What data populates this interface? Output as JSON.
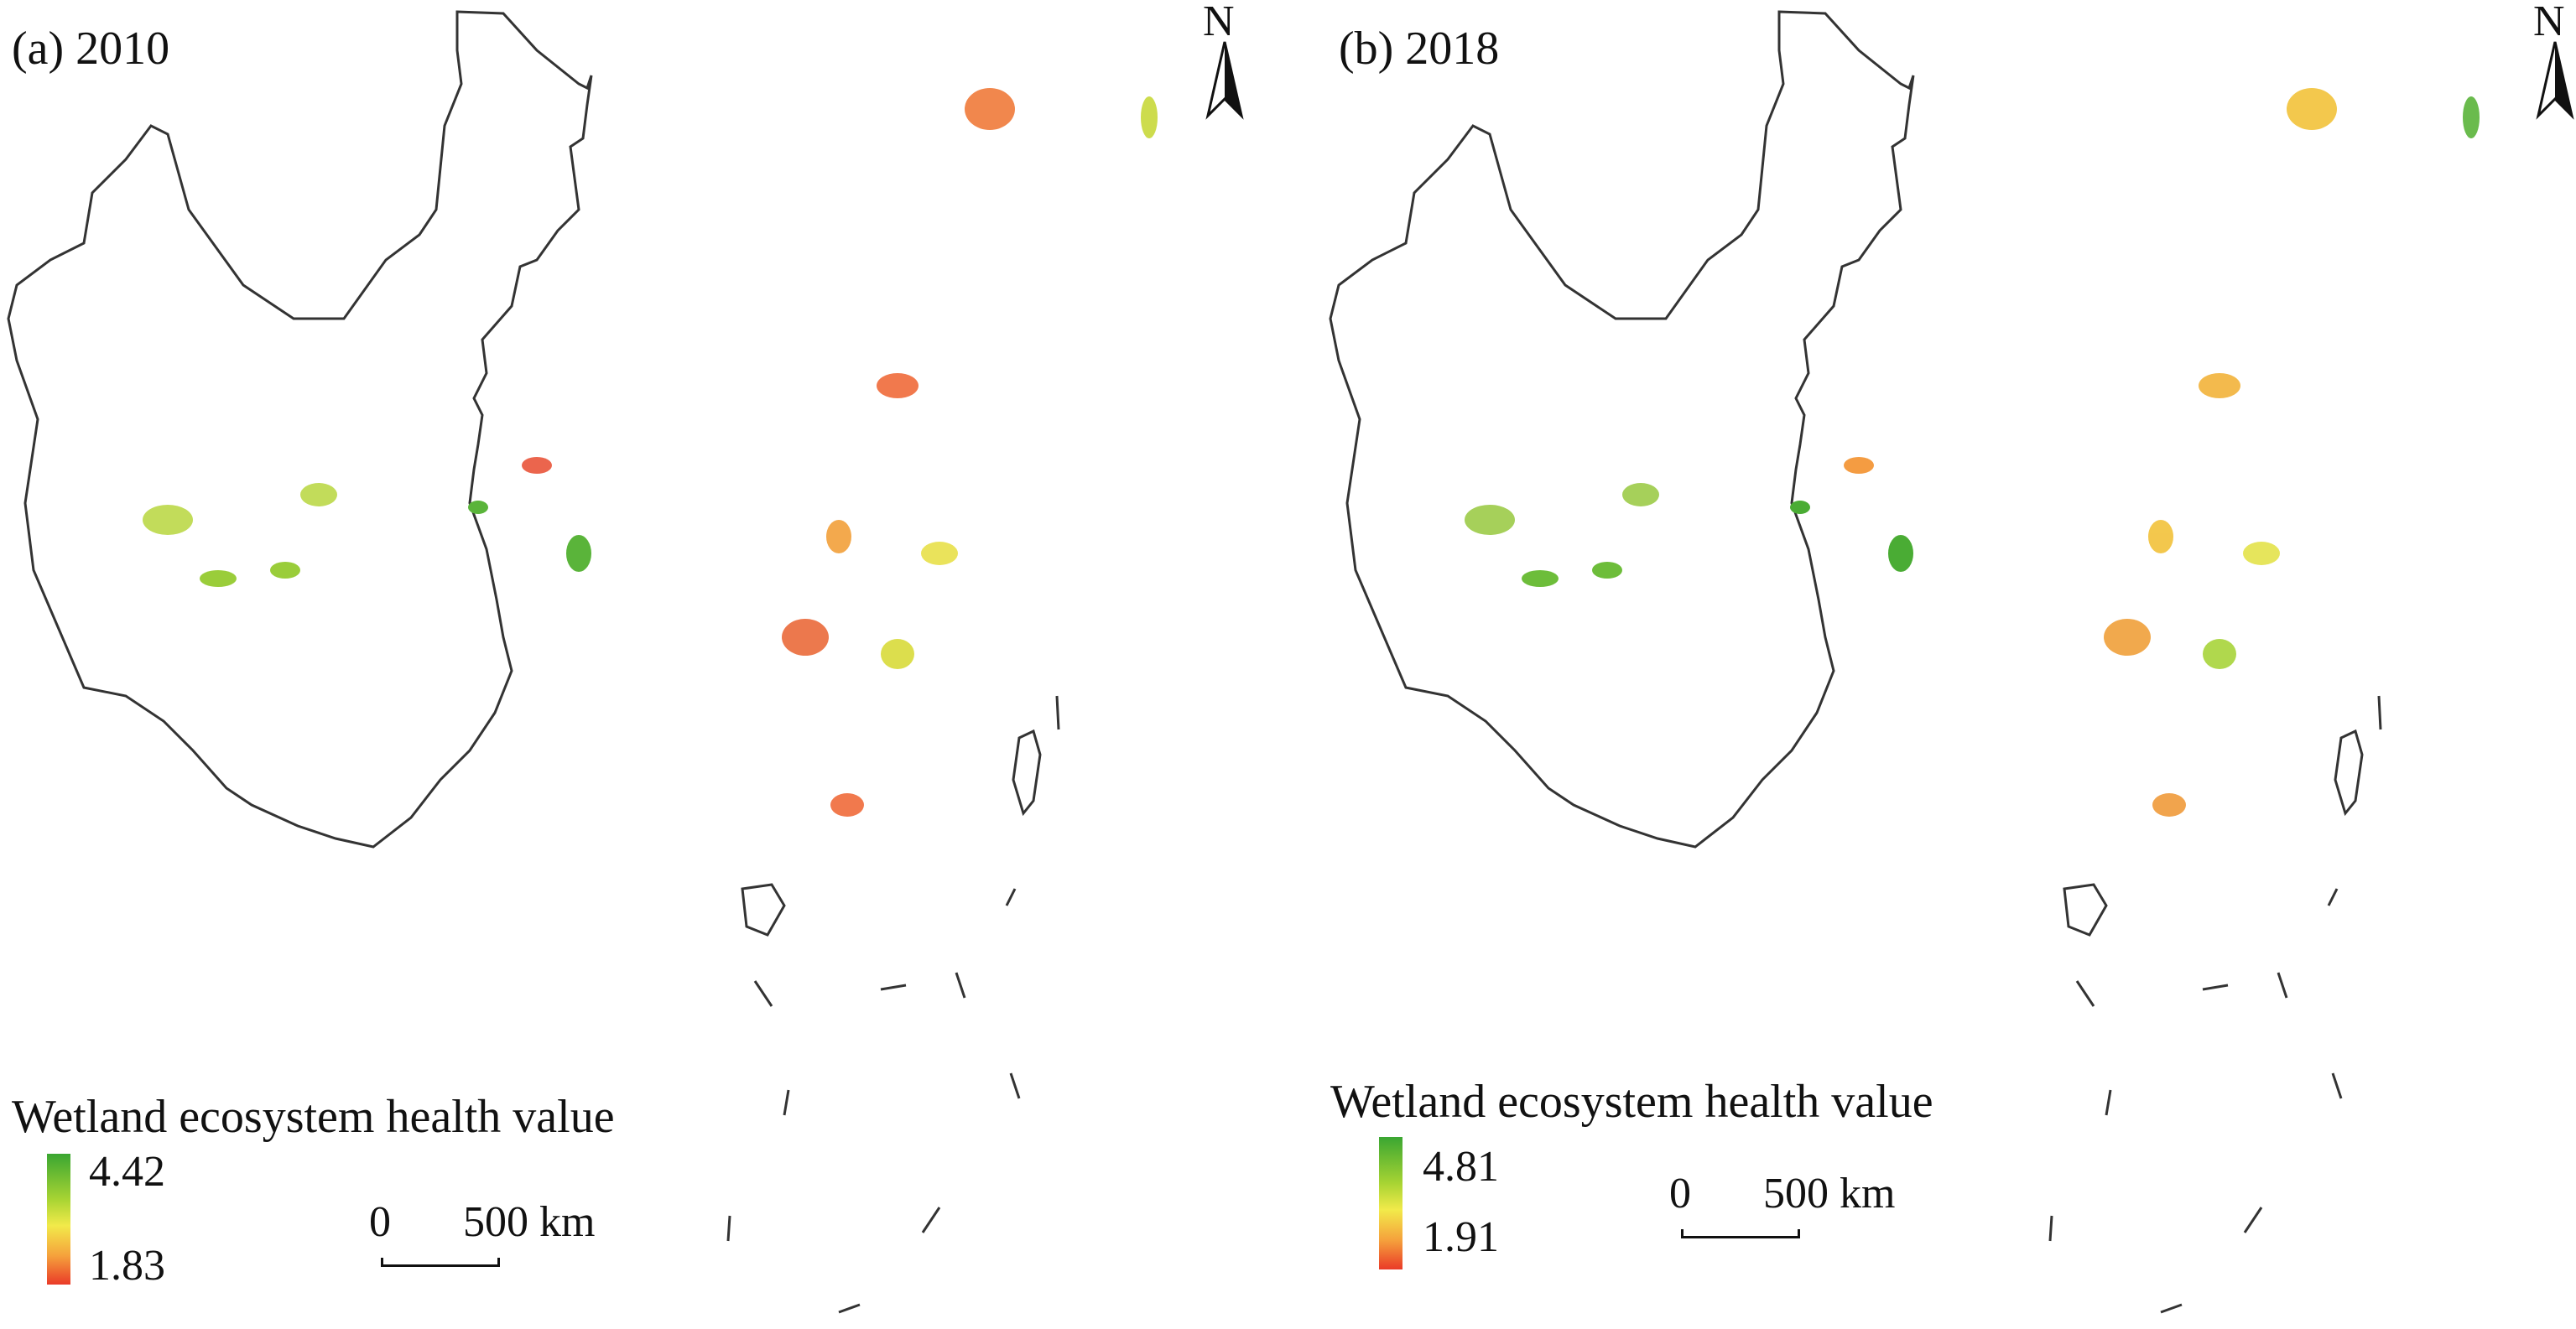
{
  "panels": [
    {
      "title": "(a) 2010",
      "legend": {
        "title": "Wetland ecosystem health value",
        "max": "4.42",
        "min": "1.83"
      },
      "scale_bar": {
        "start": "0",
        "distance": "500 km"
      },
      "north_arrow": "N",
      "ramp_colors": [
        "#3aa632",
        "#a8d433",
        "#f2ea4a",
        "#f5a13c",
        "#ea3a28"
      ],
      "dominant_tone": "red"
    },
    {
      "title": "(b) 2018",
      "legend": {
        "title": "Wetland ecosystem health value",
        "max": "4.81",
        "min": "1.91"
      },
      "scale_bar": {
        "start": "0",
        "distance": "500 km"
      },
      "north_arrow": "N",
      "ramp_colors": [
        "#3aa632",
        "#a8d433",
        "#f2ea4a",
        "#f5a13c",
        "#ea3a28"
      ],
      "dominant_tone": "yellow"
    }
  ]
}
